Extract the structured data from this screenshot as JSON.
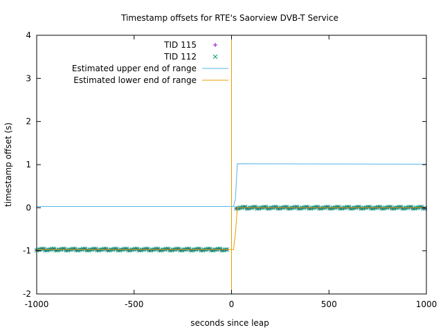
{
  "chart_data": {
    "type": "scatter",
    "title": "Timestamp offsets for RTE's Saorview DVB-T Service",
    "xlabel": "seconds since leap",
    "ylabel": "timestamp offset (s)",
    "xlim": [
      -1000,
      1000
    ],
    "ylim": [
      -2,
      4
    ],
    "xticks": [
      -1000,
      -500,
      0,
      500,
      1000
    ],
    "yticks": [
      -2,
      -1,
      0,
      1,
      2,
      3,
      4
    ],
    "xtick_labels": [
      "-1000",
      "-500",
      "0",
      "500",
      "1000"
    ],
    "ytick_labels": [
      "-2",
      "-1",
      "0",
      "1",
      "2",
      "3",
      "4"
    ],
    "grid": false,
    "legend_position": "top-center",
    "series": [
      {
        "name": "TID 115",
        "kind": "points",
        "marker": "plus",
        "color": "#9400d3",
        "segments": [
          {
            "x_from": -1000,
            "x_to": -20,
            "y": -0.97
          },
          {
            "x_from": 25,
            "x_to": 1000,
            "y": 0.0
          }
        ]
      },
      {
        "name": "TID 112",
        "kind": "points",
        "marker": "cross",
        "color": "#009e73",
        "segments": [
          {
            "x_from": -1000,
            "x_to": -20,
            "y": -0.97
          },
          {
            "x_from": 25,
            "x_to": 1000,
            "y": 0.0
          }
        ]
      },
      {
        "name": "Estimated upper end of range",
        "kind": "line",
        "color": "#56b4e9",
        "points": [
          [
            -1000,
            0.03
          ],
          [
            -150,
            0.03
          ],
          [
            10,
            0.03
          ],
          [
            20,
            0.2
          ],
          [
            30,
            1.02
          ],
          [
            1000,
            1.01
          ]
        ]
      },
      {
        "name": "Estimated lower end of range",
        "kind": "line",
        "color": "#e69f00",
        "points": [
          [
            -1000,
            -0.97
          ],
          [
            10,
            -0.97
          ],
          [
            20,
            -0.6
          ],
          [
            30,
            0.0
          ],
          [
            1000,
            0.0
          ]
        ]
      }
    ],
    "annotations": [
      {
        "type": "vertical-line",
        "x": 0,
        "color": "#e69f00"
      }
    ]
  }
}
